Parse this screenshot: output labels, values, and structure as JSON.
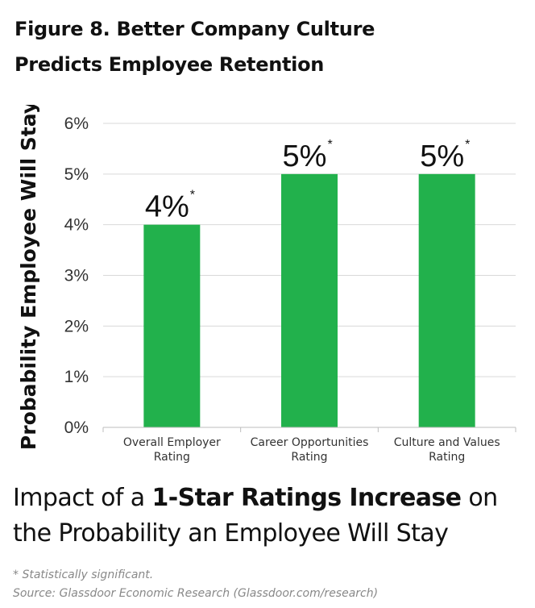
{
  "figure": {
    "title_line1": "Figure 8. Better Company Culture",
    "title_line2": "Predicts Employee Retention"
  },
  "chart_data": {
    "type": "bar",
    "ylabel": "Probability Employee Will Stay",
    "xlabel": "",
    "ylim": [
      0,
      6
    ],
    "yticks": [
      0,
      1,
      2,
      3,
      4,
      5,
      6
    ],
    "ytick_suffix": "%",
    "grid": "horizontal",
    "categories": [
      [
        "Overall Employer",
        "Rating"
      ],
      [
        "Career Opportunities",
        "Rating"
      ],
      [
        "Culture and Values",
        "Rating"
      ]
    ],
    "values": [
      4,
      5,
      5
    ],
    "data_labels": [
      "4%",
      "5%",
      "5%"
    ],
    "significance_marker": "*",
    "bar_color": "#22b14c"
  },
  "subtitle": {
    "part1": "Impact of a ",
    "bold": "1-Star Ratings Increase",
    "part2": " on",
    "line2": "the Probability an Employee Will Stay"
  },
  "footnotes": {
    "significance": "* Statistically significant.",
    "source": "Source: Glassdoor Economic Research (Glassdoor.com/research)"
  }
}
